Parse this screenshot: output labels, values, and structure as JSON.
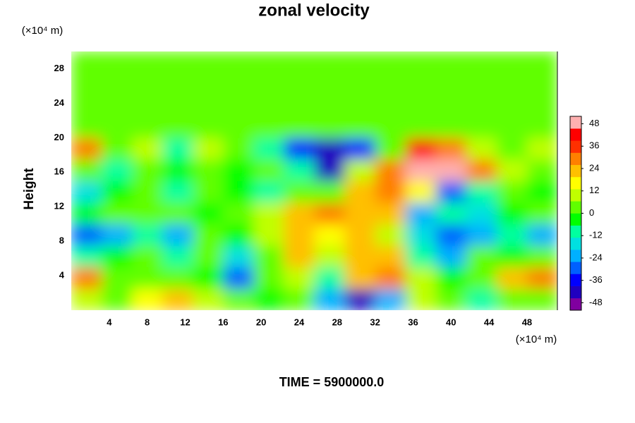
{
  "chart_data": {
    "type": "heatmap",
    "title": "zonal velocity",
    "y_label": "Height",
    "x_unit": "(×10⁴ m)",
    "y_unit": "(×10⁴ m)",
    "annotation": "TIME = 5900000.0",
    "xbins": [
      0,
      3.2,
      6.4,
      9.6,
      12.8,
      16,
      19.2,
      22.4,
      25.6,
      28.8,
      32,
      35.2,
      38.4,
      41.6,
      44.8,
      48,
      51.2
    ],
    "ybins": [
      0,
      2.5,
      5,
      7.5,
      10,
      12.5,
      15,
      17.5,
      20,
      22.5,
      25,
      27.5,
      30
    ],
    "z": [
      [
        10,
        5,
        15,
        20,
        10,
        0,
        -5,
        5,
        -20,
        -40,
        -20,
        10,
        0,
        -10,
        0,
        5
      ],
      [
        30,
        0,
        5,
        5,
        -5,
        -30,
        0,
        10,
        -10,
        20,
        30,
        10,
        -5,
        5,
        20,
        30
      ],
      [
        -10,
        -5,
        0,
        -10,
        5,
        -15,
        5,
        20,
        10,
        25,
        20,
        -10,
        -20,
        0,
        -5,
        5
      ],
      [
        -30,
        -20,
        -10,
        -20,
        0,
        -5,
        10,
        25,
        15,
        20,
        10,
        -15,
        -30,
        -20,
        -10,
        -20
      ],
      [
        -5,
        0,
        5,
        0,
        -5,
        5,
        10,
        20,
        30,
        25,
        20,
        -20,
        -10,
        -15,
        -5,
        0
      ],
      [
        -15,
        -5,
        0,
        -10,
        0,
        -5,
        -10,
        0,
        5,
        25,
        30,
        15,
        -30,
        -10,
        0,
        -5
      ],
      [
        5,
        -10,
        0,
        -5,
        5,
        -5,
        0,
        -10,
        -40,
        10,
        30,
        48,
        48,
        30,
        10,
        0
      ],
      [
        30,
        0,
        10,
        -10,
        10,
        0,
        -10,
        -35,
        -40,
        -35,
        5,
        40,
        30,
        10,
        0,
        10
      ],
      [
        3,
        3,
        3,
        3,
        3,
        3,
        3,
        3,
        3,
        3,
        3,
        3,
        3,
        3,
        3,
        3
      ],
      [
        1,
        1,
        1,
        1,
        1,
        1,
        1,
        1,
        1,
        1,
        1,
        1,
        1,
        1,
        1,
        1
      ],
      [
        0,
        0,
        0,
        0,
        0,
        0,
        0,
        0,
        0,
        0,
        0,
        0,
        0,
        0,
        0,
        0
      ],
      [
        0,
        0,
        0,
        0,
        0,
        0,
        0,
        0,
        0,
        0,
        0,
        0,
        0,
        0,
        0,
        0
      ]
    ],
    "xlim": [
      0,
      51.2
    ],
    "ylim": [
      0,
      30
    ],
    "xticks": [
      4,
      8,
      12,
      16,
      20,
      24,
      28,
      32,
      36,
      40,
      44,
      48
    ],
    "yticks": [
      4,
      8,
      12,
      16,
      20,
      24,
      28
    ],
    "zlim": [
      -52,
      52
    ],
    "colorscale": [
      "#8000a0",
      "#2000c0",
      "#0000ff",
      "#0060ff",
      "#00b0ff",
      "#00e0e0",
      "#00ffa0",
      "#00ff00",
      "#60ff00",
      "#c0ff00",
      "#ffff00",
      "#ffc000",
      "#ff8000",
      "#ff3000",
      "#ff0000",
      "#ffb0b0"
    ],
    "colorbar_ticks": [
      -48,
      -36,
      -24,
      -12,
      0,
      12,
      24,
      36,
      48
    ]
  }
}
